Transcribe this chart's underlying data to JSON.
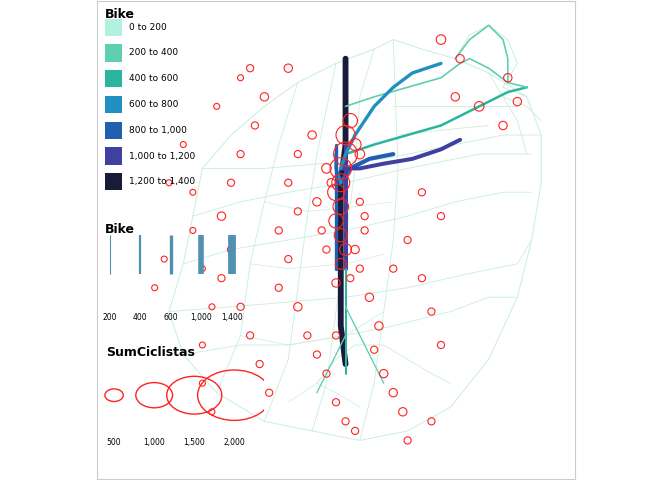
{
  "title": "",
  "legend_color_title": "Bike",
  "legend_color_labels": [
    "0 to 200",
    "200 to 400",
    "400 to 600",
    "600 to 800",
    "800 to 1,000",
    "1,000 to 1,200",
    "1,200 to 1,400"
  ],
  "legend_color_values": [
    "#b2f0e0",
    "#5ecfb0",
    "#2ab5a0",
    "#2090c0",
    "#2060b0",
    "#4040a0",
    "#1a1a3a"
  ],
  "legend_width_title": "Bike",
  "legend_width_values": [
    200,
    400,
    600,
    1000,
    1400
  ],
  "legend_size_title": "SumCiclistas",
  "legend_size_values": [
    500,
    1000,
    1500,
    2000
  ],
  "bg_color": "#ffffff",
  "border_color": "#cccccc",
  "map_bg": "#ffffff",
  "road_thin_color": "#c8eede",
  "road_thick_colors": [
    "#b2f0e0",
    "#5ecfb0",
    "#2ab5a0",
    "#2090c0",
    "#2060b0",
    "#4040a0",
    "#1a1a3a"
  ],
  "circle_color": "#ff2222",
  "circle_edge_color": "#ff2222",
  "xlim": [
    0,
    1
  ],
  "ylim": [
    0,
    1
  ]
}
